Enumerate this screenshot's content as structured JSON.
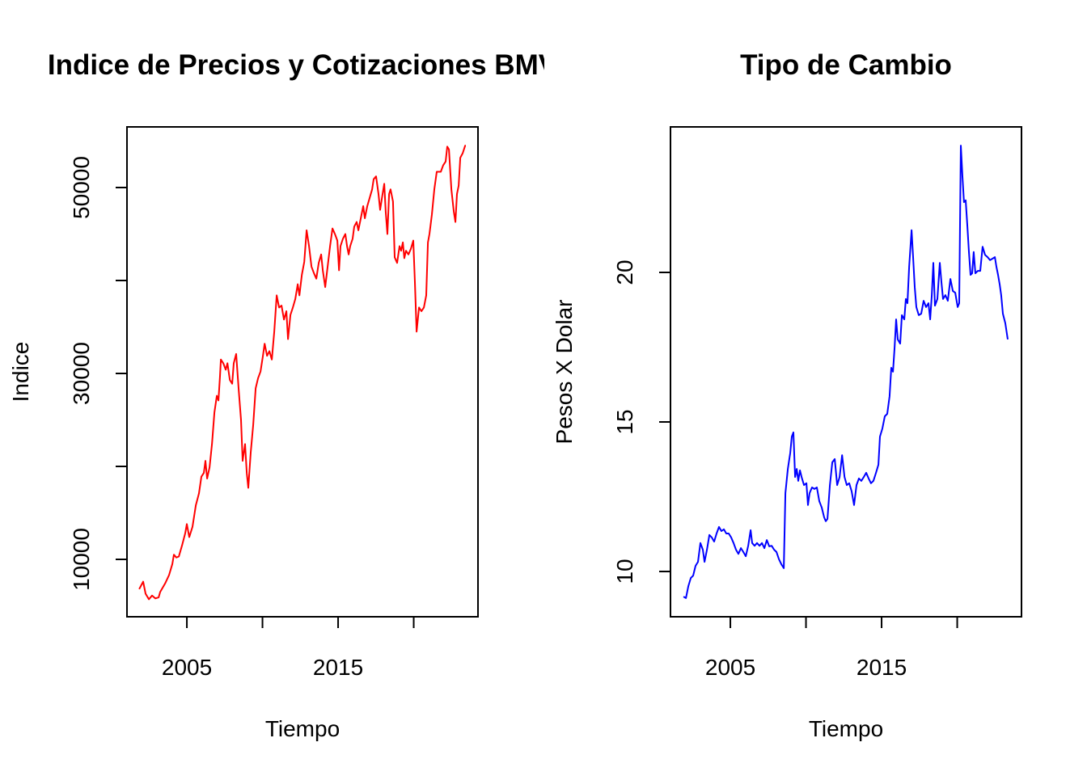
{
  "chart_data": [
    {
      "type": "line",
      "title": "Indice de Precios y Cotizaciones BMV",
      "xlabel": "Tiempo",
      "ylabel": "Indice",
      "color": "#ff0000",
      "xlim": [
        2001.04,
        2024.25
      ],
      "xticks": [
        2005,
        {
          "value": 2010,
          "label": null
        },
        2015,
        {
          "value": 2020,
          "label": null
        }
      ],
      "ylim": [
        3826,
        56522
      ],
      "yticks": [
        10000,
        {
          "value": 20000,
          "label": null
        },
        30000,
        {
          "value": 40000,
          "label": null
        },
        50000
      ],
      "x": [
        2001.85,
        2002.11,
        2002.27,
        2002.49,
        2002.7,
        2002.91,
        2003.13,
        2003.24,
        2003.56,
        2003.82,
        2004.04,
        2004.14,
        2004.3,
        2004.47,
        2004.68,
        2004.89,
        2005.0,
        2005.16,
        2005.37,
        2005.59,
        2005.8,
        2005.96,
        2006.12,
        2006.23,
        2006.34,
        2006.5,
        2006.66,
        2006.82,
        2006.98,
        2007.09,
        2007.19,
        2007.25,
        2007.41,
        2007.57,
        2007.68,
        2007.84,
        2008.0,
        2008.1,
        2008.26,
        2008.42,
        2008.58,
        2008.69,
        2008.85,
        2008.96,
        2009.06,
        2009.22,
        2009.39,
        2009.55,
        2009.71,
        2009.87,
        2010.03,
        2010.14,
        2010.3,
        2010.46,
        2010.62,
        2010.78,
        2010.94,
        2011.1,
        2011.26,
        2011.42,
        2011.58,
        2011.69,
        2011.85,
        2012.01,
        2012.17,
        2012.33,
        2012.44,
        2012.6,
        2012.76,
        2012.92,
        2013.08,
        2013.24,
        2013.4,
        2013.56,
        2013.72,
        2013.88,
        2013.99,
        2014.15,
        2014.31,
        2014.47,
        2014.63,
        2014.79,
        2014.95,
        2015.06,
        2015.16,
        2015.32,
        2015.48,
        2015.59,
        2015.7,
        2015.8,
        2015.96,
        2016.07,
        2016.23,
        2016.34,
        2016.5,
        2016.66,
        2016.77,
        2016.93,
        2017.09,
        2017.25,
        2017.35,
        2017.51,
        2017.67,
        2017.78,
        2017.94,
        2018.05,
        2018.15,
        2018.26,
        2018.37,
        2018.47,
        2018.63,
        2018.74,
        2018.9,
        2019.06,
        2019.17,
        2019.28,
        2019.38,
        2019.49,
        2019.65,
        2019.81,
        2019.97,
        2020.08,
        2020.19,
        2020.35,
        2020.51,
        2020.67,
        2020.83,
        2020.94,
        2021.04,
        2021.2,
        2021.36,
        2021.52,
        2021.63,
        2021.79,
        2021.95,
        2022.11,
        2022.22,
        2022.33,
        2022.49,
        2022.65,
        2022.76,
        2022.86,
        2022.97,
        2023.08,
        2023.24,
        2023.4,
        2023.45
      ],
      "values": [
        6800,
        7600,
        6300,
        5700,
        6100,
        5800,
        5900,
        6500,
        7400,
        8300,
        9500,
        10500,
        10200,
        10300,
        11500,
        12800,
        13800,
        12400,
        13500,
        15800,
        17100,
        18900,
        19300,
        20600,
        18700,
        19900,
        22400,
        25800,
        27600,
        27100,
        29700,
        31500,
        31100,
        30400,
        31100,
        29300,
        28900,
        31100,
        32100,
        28400,
        25000,
        20600,
        22400,
        19300,
        17700,
        21500,
        24500,
        28400,
        29500,
        30200,
        31900,
        33200,
        31900,
        32400,
        31500,
        34500,
        38400,
        37100,
        37300,
        35800,
        36700,
        33700,
        36300,
        37100,
        38000,
        39600,
        38400,
        40600,
        42000,
        45400,
        43700,
        41500,
        40800,
        40200,
        41900,
        42800,
        41100,
        39300,
        41500,
        43700,
        45600,
        45000,
        44300,
        41100,
        43700,
        44500,
        45000,
        43700,
        42800,
        43700,
        44500,
        45800,
        46300,
        45400,
        46700,
        48000,
        46700,
        48000,
        48900,
        49800,
        50900,
        51200,
        49300,
        47600,
        49300,
        50400,
        47400,
        45000,
        49300,
        49800,
        48500,
        42500,
        41900,
        43700,
        43200,
        44100,
        42400,
        43200,
        42800,
        43400,
        44300,
        39800,
        34500,
        37100,
        36700,
        37100,
        38400,
        44100,
        45000,
        47100,
        49800,
        51700,
        51700,
        51700,
        52400,
        52800,
        54400,
        54100,
        49800,
        47400,
        46300,
        49300,
        50200,
        53200,
        53700,
        54500,
        54500
      ]
    },
    {
      "type": "line",
      "title": "Tipo de Cambio",
      "xlabel": "Tiempo",
      "ylabel": "Pesos X Dolar",
      "color": "#0000ff",
      "xlim": [
        2001.04,
        2024.25
      ],
      "xticks": [
        2005,
        {
          "value": 2010,
          "label": null
        },
        2015,
        {
          "value": 2020,
          "label": null
        }
      ],
      "ylim": [
        8.486,
        24.865
      ],
      "yticks": [
        10,
        15,
        20
      ],
      "x": [
        2001.9,
        2002.06,
        2002.22,
        2002.38,
        2002.54,
        2002.7,
        2002.86,
        2003.02,
        2003.18,
        2003.29,
        2003.45,
        2003.61,
        2003.77,
        2003.93,
        2004.09,
        2004.25,
        2004.41,
        2004.57,
        2004.73,
        2004.89,
        2005.05,
        2005.21,
        2005.37,
        2005.53,
        2005.7,
        2005.86,
        2006.02,
        2006.18,
        2006.34,
        2006.44,
        2006.6,
        2006.76,
        2006.93,
        2007.09,
        2007.25,
        2007.41,
        2007.57,
        2007.73,
        2007.89,
        2008.05,
        2008.21,
        2008.37,
        2008.53,
        2008.64,
        2008.8,
        2008.96,
        2009.06,
        2009.17,
        2009.28,
        2009.39,
        2009.49,
        2009.6,
        2009.71,
        2009.87,
        2010.03,
        2010.13,
        2010.24,
        2010.4,
        2010.56,
        2010.72,
        2010.88,
        2011.04,
        2011.2,
        2011.31,
        2011.42,
        2011.58,
        2011.74,
        2011.9,
        2012.06,
        2012.22,
        2012.39,
        2012.55,
        2012.7,
        2012.86,
        2013.02,
        2013.18,
        2013.34,
        2013.5,
        2013.66,
        2013.82,
        2013.98,
        2014.14,
        2014.3,
        2014.46,
        2014.63,
        2014.79,
        2014.89,
        2015.05,
        2015.21,
        2015.37,
        2015.53,
        2015.64,
        2015.75,
        2015.86,
        2015.96,
        2016.07,
        2016.23,
        2016.34,
        2016.5,
        2016.6,
        2016.71,
        2016.82,
        2016.98,
        2017.09,
        2017.19,
        2017.3,
        2017.46,
        2017.62,
        2017.78,
        2017.94,
        2018.1,
        2018.21,
        2018.32,
        2018.42,
        2018.53,
        2018.69,
        2018.85,
        2018.96,
        2019.06,
        2019.22,
        2019.38,
        2019.55,
        2019.71,
        2019.87,
        2020.03,
        2020.13,
        2020.24,
        2020.35,
        2020.45,
        2020.56,
        2020.67,
        2020.77,
        2020.88,
        2020.99,
        2021.09,
        2021.2,
        2021.36,
        2021.52,
        2021.68,
        2021.84,
        2022.01,
        2022.17,
        2022.33,
        2022.49,
        2022.59,
        2022.7,
        2022.81,
        2022.91,
        2023.02,
        2023.18,
        2023.34
      ],
      "values": [
        9.16,
        9.11,
        9.51,
        9.78,
        9.86,
        10.19,
        10.32,
        10.95,
        10.73,
        10.32,
        10.73,
        11.22,
        11.14,
        11.0,
        11.27,
        11.49,
        11.35,
        11.41,
        11.27,
        11.27,
        11.14,
        10.95,
        10.73,
        10.59,
        10.78,
        10.65,
        10.51,
        10.86,
        11.38,
        10.95,
        10.86,
        10.95,
        10.86,
        10.95,
        10.78,
        11.05,
        10.84,
        10.86,
        10.73,
        10.65,
        10.41,
        10.24,
        10.11,
        12.62,
        13.43,
        13.97,
        14.51,
        14.65,
        13.16,
        13.43,
        13.03,
        13.38,
        13.16,
        12.89,
        12.95,
        12.22,
        12.62,
        12.81,
        12.76,
        12.81,
        12.35,
        12.14,
        11.81,
        11.68,
        11.76,
        12.89,
        13.65,
        13.76,
        12.89,
        13.16,
        13.89,
        13.16,
        12.89,
        12.95,
        12.68,
        12.22,
        12.89,
        13.11,
        13.03,
        13.16,
        13.3,
        13.11,
        12.95,
        13.03,
        13.3,
        13.57,
        14.51,
        14.78,
        15.19,
        15.27,
        15.86,
        16.81,
        16.68,
        17.49,
        18.43,
        17.76,
        17.62,
        18.57,
        18.43,
        19.11,
        18.97,
        20.19,
        21.41,
        20.46,
        19.51,
        18.84,
        18.57,
        18.62,
        19.05,
        18.84,
        18.97,
        18.43,
        19.24,
        20.32,
        18.89,
        19.11,
        20.32,
        19.65,
        19.11,
        19.24,
        19.05,
        19.78,
        19.38,
        19.32,
        18.84,
        18.97,
        24.24,
        23.16,
        22.35,
        22.41,
        21.54,
        20.73,
        19.92,
        19.97,
        20.68,
        19.97,
        20.05,
        20.05,
        20.86,
        20.59,
        20.51,
        20.41,
        20.46,
        20.51,
        20.19,
        19.92,
        19.59,
        19.24,
        18.62,
        18.3,
        17.76
      ]
    }
  ]
}
